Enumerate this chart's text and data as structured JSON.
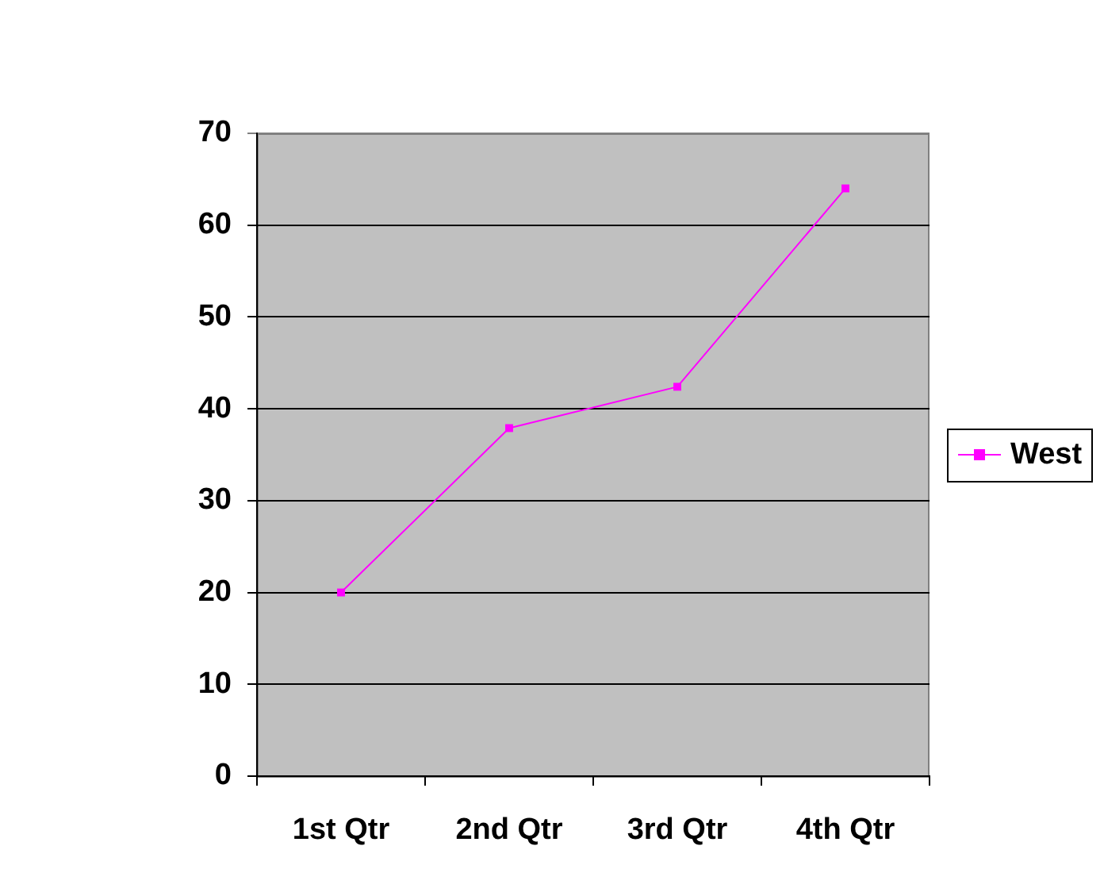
{
  "chart_data": {
    "type": "line",
    "categories": [
      "1st Qtr",
      "2nd Qtr",
      "3rd Qtr",
      "4th Qtr"
    ],
    "series": [
      {
        "name": "West",
        "color": "#ff00ff",
        "values": [
          20,
          37.9,
          42.4,
          64
        ]
      }
    ],
    "ylim": [
      0,
      70
    ],
    "yticks": [
      0,
      10,
      20,
      30,
      40,
      50,
      60,
      70
    ],
    "grid": "y",
    "legend": "right",
    "marker": "square"
  }
}
